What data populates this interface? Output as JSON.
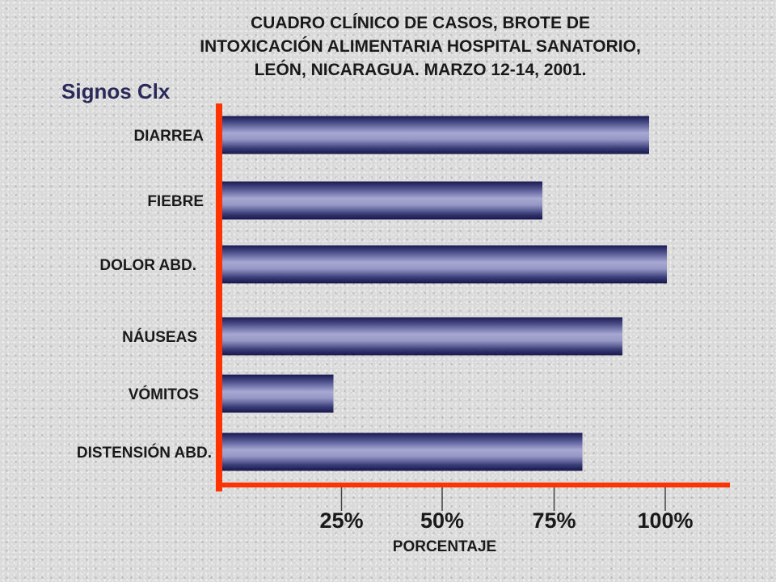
{
  "header": {
    "title_lines": [
      "CUADRO CLÍNICO DE CASOS, BROTE DE",
      "INTOXICACIÓN ALIMENTARIA HOSPITAL SANATORIO,",
      "LEÓN, NICARAGUA. MARZO 12-14, 2001."
    ]
  },
  "chart_data": {
    "type": "bar",
    "orientation": "horizontal",
    "title": "CUADRO CLÍNICO DE CASOS, BROTE DE INTOXICACIÓN ALIMENTARIA HOSPITAL SANATORIO, LEÓN, NICARAGUA. MARZO 12-14, 2001.",
    "ylabel": "Signos Clx",
    "xlabel": "PORCENTAJE",
    "categories": [
      "DIARREA",
      "FIEBRE",
      "DOLOR ABD.",
      "NÁUSEAS",
      "VÓMITOS",
      "DISTENSIÓN ABD."
    ],
    "values": [
      96,
      72,
      100,
      90,
      25,
      81
    ],
    "xlim": [
      0,
      100
    ],
    "xticks": [
      25,
      50,
      75,
      100
    ],
    "xtick_labels": [
      "25%",
      "50%",
      "75%",
      "100%"
    ],
    "grid": false,
    "legend": "none",
    "colors": {
      "bar_dark": "#1f1f5c",
      "bar_light": "#a7a9d2",
      "axis": "#ff3300"
    }
  }
}
